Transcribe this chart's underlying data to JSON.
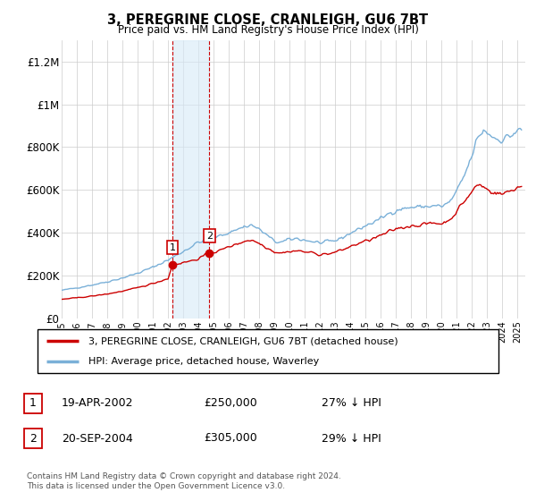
{
  "title": "3, PEREGRINE CLOSE, CRANLEIGH, GU6 7BT",
  "subtitle": "Price paid vs. HM Land Registry's House Price Index (HPI)",
  "ylabel_ticks": [
    "£0",
    "£200K",
    "£400K",
    "£600K",
    "£800K",
    "£1M",
    "£1.2M"
  ],
  "ytick_values": [
    0,
    200000,
    400000,
    600000,
    800000,
    1000000,
    1200000
  ],
  "ylim": [
    0,
    1300000
  ],
  "xlim_start": 1995.0,
  "xlim_end": 2025.5,
  "hpi_color": "#7ab0d8",
  "price_color": "#cc0000",
  "sale1_date": 2002.29,
  "sale1_price": 250000,
  "sale2_date": 2004.72,
  "sale2_price": 305000,
  "sale_marker_color": "#cc0000",
  "vband_color": "#d6eaf8",
  "vband_alpha": 0.6,
  "grid_color": "#cccccc",
  "legend_label_red": "3, PEREGRINE CLOSE, CRANLEIGH, GU6 7BT (detached house)",
  "legend_label_blue": "HPI: Average price, detached house, Waverley",
  "table_rows": [
    {
      "num": "1",
      "date": "19-APR-2002",
      "price": "£250,000",
      "pct": "27% ↓ HPI"
    },
    {
      "num": "2",
      "date": "20-SEP-2004",
      "price": "£305,000",
      "pct": "29% ↓ HPI"
    }
  ],
  "footnote": "Contains HM Land Registry data © Crown copyright and database right 2024.\nThis data is licensed under the Open Government Licence v3.0."
}
